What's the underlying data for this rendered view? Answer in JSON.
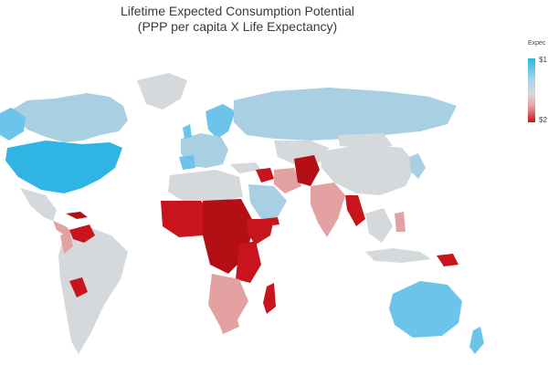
{
  "title_line1": "Lifetime Expected Consumption Potential",
  "title_line2": "(PPP per capita X Life Expectancy)",
  "legend": {
    "title": "Expec",
    "max_label": "$1",
    "min_label": "$2",
    "color_high": "#2fb4e4",
    "color_mid": "#d8d8d8",
    "color_low": "#c8141c"
  },
  "colors": {
    "blue": "#6cc4ea",
    "light_blue": "#a9cfe2",
    "grey": "#d6d9dc",
    "pink": "#e3a1a1",
    "red": "#c8141c",
    "dark_red": "#b40f15"
  }
}
